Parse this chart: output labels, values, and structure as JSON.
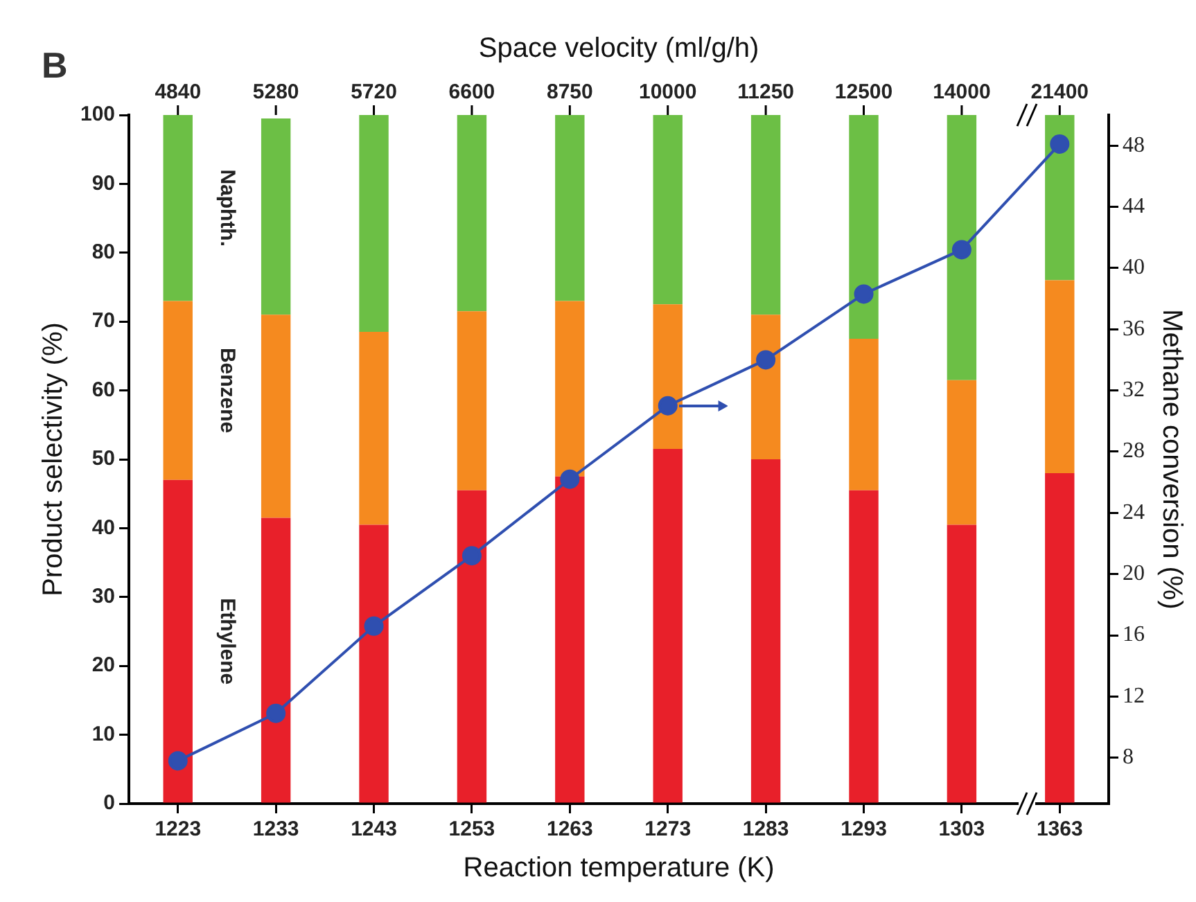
{
  "chart_data": {
    "type": "bar",
    "title": "B",
    "xlabel": "Reaction temperature (K)",
    "ylabel": "Product selectivity (%)",
    "y2label": "Methane conversion (%)",
    "x2label": "Space velocity (ml/g/h)",
    "categories": [
      "1223",
      "1233",
      "1243",
      "1253",
      "1263",
      "1273",
      "1283",
      "1293",
      "1303",
      "1363"
    ],
    "annotations": [
      {
        "text": "4840",
        "x": "1223"
      },
      {
        "text": "5280",
        "x": "1233"
      },
      {
        "text": "5720",
        "x": "1243"
      },
      {
        "text": "6600",
        "x": "1253"
      },
      {
        "text": "8750",
        "x": "1263"
      },
      {
        "text": "10000",
        "x": "1273"
      },
      {
        "text": "11250",
        "x": "1283"
      },
      {
        "text": "12500",
        "x": "1293"
      },
      {
        "text": "14000",
        "x": "1303"
      },
      {
        "text": "21400",
        "x": "1363"
      }
    ],
    "stacked": true,
    "series": [
      {
        "name": "Ethylene",
        "color": "#e8202a",
        "values": [
          47,
          41.5,
          40.5,
          45.5,
          47.5,
          51.5,
          50,
          45.5,
          40.5,
          48
        ]
      },
      {
        "name": "Benzene",
        "color": "#f58a1f",
        "values": [
          26,
          29.5,
          28,
          26,
          25.5,
          21,
          21,
          22,
          21,
          28
        ]
      },
      {
        "name": "Naphth.",
        "color": "#6cbf45",
        "values": [
          27,
          28.5,
          31.5,
          28.5,
          27,
          27.5,
          29,
          32.5,
          38.5,
          24
        ]
      },
      {
        "type": "line",
        "axis": "y2",
        "color": "#2f4fb0",
        "marker": "circle",
        "line_style": "solid",
        "values": [
          7.8,
          10.9,
          16.6,
          21.2,
          26.2,
          31,
          34,
          38.3,
          41.2,
          48.1
        ]
      }
    ],
    "ylim": [
      0,
      100
    ],
    "yticks": [
      0,
      10,
      20,
      30,
      40,
      50,
      60,
      70,
      80,
      90,
      100
    ],
    "y2lim": [
      5,
      50
    ],
    "y2ticks": [
      8,
      12,
      16,
      20,
      24,
      28,
      32,
      36,
      40,
      44,
      48
    ],
    "grid": false,
    "legend": false
  }
}
